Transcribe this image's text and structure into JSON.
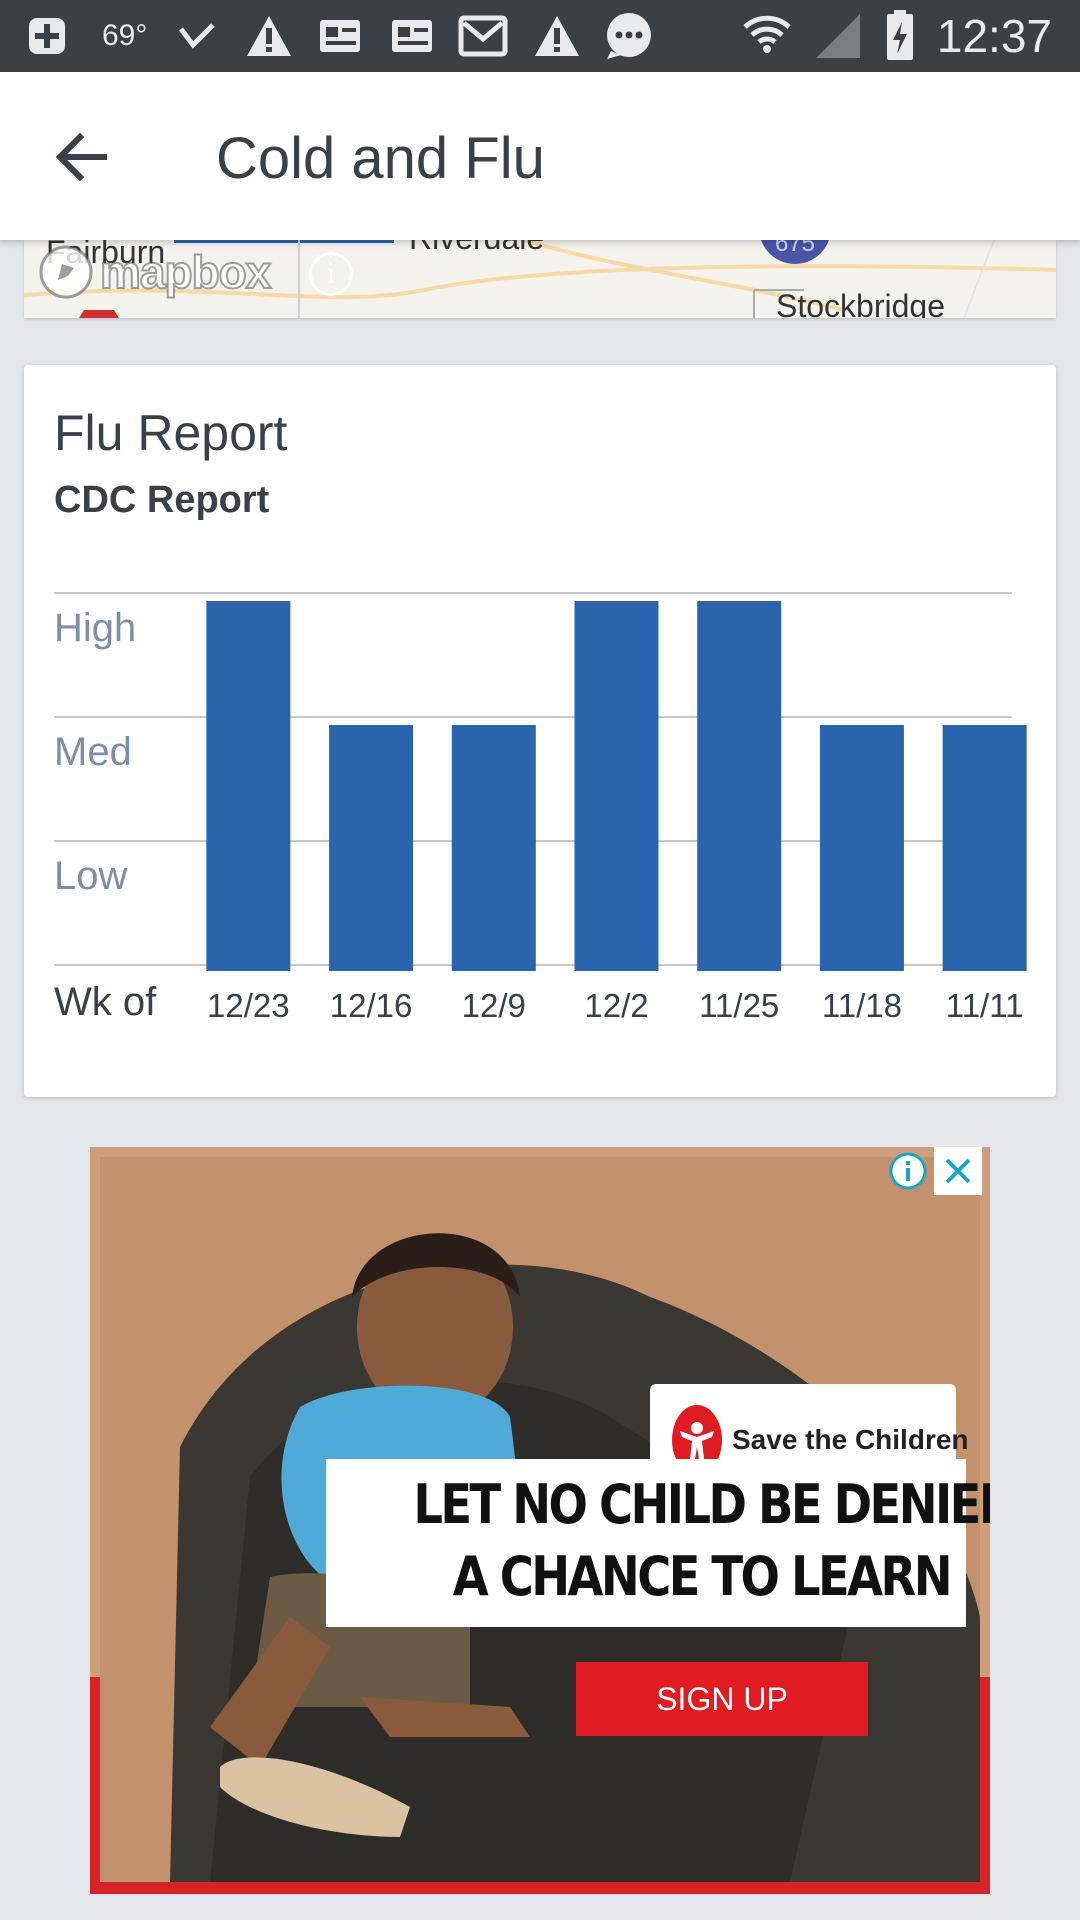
{
  "status_bar": {
    "temperature": "69°",
    "time": "12:37",
    "icons": [
      "add-box-icon",
      "check-icon",
      "warning-icon",
      "news-icon",
      "news-icon",
      "mail-icon",
      "warning-icon",
      "chat-icon",
      "wifi-icon",
      "signal-icon",
      "battery-charging-icon"
    ]
  },
  "app_bar": {
    "back_icon": "arrow-left-icon",
    "title": "Cold and Flu"
  },
  "map": {
    "labels": [
      "Fairburn",
      "Riverdale",
      "675",
      "Stockbridge"
    ],
    "brand": "mapbox",
    "info_icon": "info-icon"
  },
  "flu_card": {
    "title": "Flu Report",
    "subtitle": "CDC Report"
  },
  "chart_data": {
    "type": "bar",
    "xlabel": "Wk of",
    "categories": [
      "12/23",
      "12/16",
      "12/9",
      "12/2",
      "11/25",
      "11/18",
      "11/11"
    ],
    "values": [
      3,
      2,
      2,
      3,
      3,
      2,
      2
    ],
    "y_levels": [
      "Low",
      "Med",
      "High"
    ],
    "ylim": [
      0,
      3
    ],
    "grid": true,
    "bar_color": "#2a64ad"
  },
  "ad": {
    "org": "Save the Children",
    "headline_1": "LET NO CHILD BE DENIED",
    "headline_2": "A CHANCE TO LEARN",
    "cta": "SIGN UP",
    "info_icon": "info-icon",
    "close_icon": "close-icon",
    "accent": "#e11b22"
  }
}
